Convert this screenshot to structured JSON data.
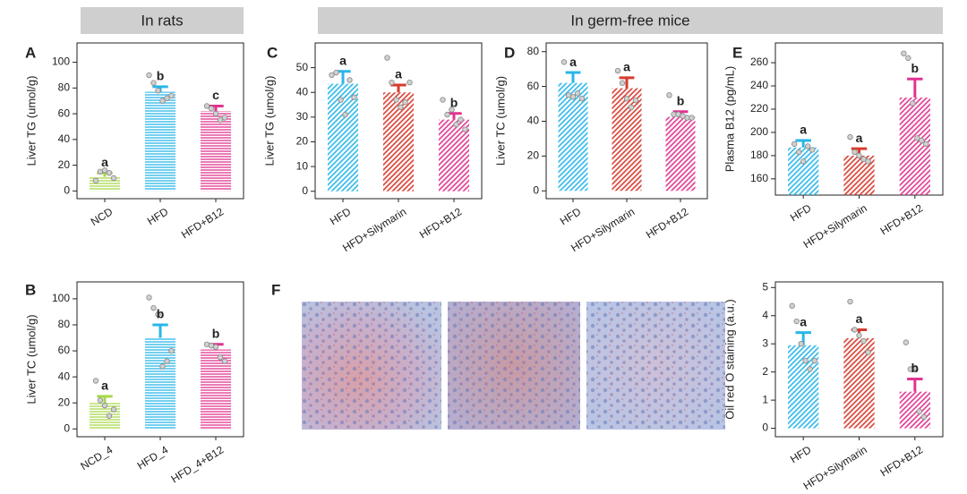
{
  "headers": [
    "In rats",
    "In germ-free mice"
  ],
  "chart_data": [
    {
      "type": "bar",
      "panel": "A",
      "ylabel": "Liver TG (umol/g)",
      "categories": [
        "NCD",
        "HFD",
        "HFD+B12"
      ],
      "values": [
        11,
        77,
        62
      ],
      "errors": [
        3,
        4,
        4
      ],
      "colors": [
        "#a6d84a",
        "#29b6e8",
        "#e0338f"
      ],
      "points": [
        [
          8,
          15,
          16,
          14,
          10
        ],
        [
          90,
          84,
          78,
          70,
          72,
          74
        ],
        [
          66,
          64,
          60,
          55,
          57
        ]
      ],
      "annotations": [
        "a",
        "b",
        "c"
      ],
      "ylim": [
        -6,
        115
      ],
      "yticks": [
        0,
        20,
        40,
        60,
        80,
        100
      ],
      "pattern": "horizontal"
    },
    {
      "type": "bar",
      "panel": "B",
      "ylabel": "Liver TC (umol/g)",
      "categories": [
        "NCD_4",
        "HFD_4",
        "HFD_4+B12"
      ],
      "values": [
        20,
        70,
        61
      ],
      "errors": [
        5,
        10,
        4
      ],
      "colors": [
        "#a6d84a",
        "#29b6e8",
        "#e0338f"
      ],
      "points": [
        [
          37,
          22,
          18,
          10,
          15
        ],
        [
          101,
          93,
          88,
          48,
          52,
          60
        ],
        [
          65,
          64,
          63,
          55,
          52
        ]
      ],
      "annotations": [
        "a",
        "b",
        "b"
      ],
      "ylim": [
        -6,
        113
      ],
      "yticks": [
        0,
        20,
        40,
        60,
        80,
        100
      ],
      "pattern": "horizontal"
    },
    {
      "type": "bar",
      "panel": "C",
      "ylabel": "Liver TG (umol/g)",
      "categories": [
        "HFD",
        "HFD+Silymarin",
        "HFD+B12"
      ],
      "values": [
        43.5,
        40,
        29
      ],
      "errors": [
        5,
        3,
        2.5
      ],
      "colors": [
        "#29b6e8",
        "#d63a2e",
        "#e0338f"
      ],
      "points": [
        [
          47,
          48,
          37,
          31,
          45,
          38
        ],
        [
          54,
          44,
          37,
          34,
          36,
          44
        ],
        [
          37,
          31,
          33,
          27,
          29,
          25
        ]
      ],
      "annotations": [
        "a",
        "a",
        "b"
      ],
      "ylim": [
        -3,
        60
      ],
      "yticks": [
        0,
        10,
        20,
        30,
        40,
        50
      ],
      "pattern": "diagonal"
    },
    {
      "type": "bar",
      "panel": "D",
      "ylabel": "Liver TC (umol/g)",
      "categories": [
        "HFD",
        "HFD+Silymarin",
        "HFD+B12"
      ],
      "values": [
        62,
        59,
        42.5
      ],
      "errors": [
        6,
        6,
        3
      ],
      "colors": [
        "#29b6e8",
        "#d63a2e",
        "#e0338f"
      ],
      "points": [
        [
          74,
          55,
          54,
          56,
          53
        ],
        [
          69,
          62,
          53,
          48,
          52
        ],
        [
          55,
          44,
          44,
          43,
          42,
          42
        ]
      ],
      "annotations": [
        "a",
        "a",
        "b"
      ],
      "ylim": [
        -4.5,
        85
      ],
      "yticks": [
        0,
        20,
        40,
        60,
        80
      ],
      "pattern": "diagonal"
    },
    {
      "type": "bar",
      "panel": "E",
      "ylabel": "Plasma B12 (pg/mL)",
      "categories": [
        "HFD",
        "HFD+Silymarin",
        "HFD+B12"
      ],
      "values": [
        187,
        180,
        230
      ],
      "errors": [
        6,
        6,
        16
      ],
      "colors": [
        "#29b6e8",
        "#d63a2e",
        "#e0338f"
      ],
      "points": [
        [
          190,
          183,
          175,
          188,
          185
        ],
        [
          196,
          183,
          180,
          177,
          175
        ],
        [
          268,
          264,
          225,
          195,
          193,
          190
        ]
      ],
      "annotations": [
        "a",
        "a",
        "b"
      ],
      "ylim": [
        146,
        277
      ],
      "yticks": [
        160,
        180,
        200,
        220,
        240,
        260
      ],
      "pattern": "diagonal"
    },
    {
      "type": "bar",
      "panel": "F",
      "ylabel": "Oil red O staining (a.u.)",
      "categories": [
        "HFD",
        "HFD+Silymarin",
        "HFD+B12"
      ],
      "values": [
        2.95,
        3.2,
        1.3
      ],
      "errors": [
        0.45,
        0.3,
        0.45
      ],
      "colors": [
        "#29b6e8",
        "#d63a2e",
        "#e0338f"
      ],
      "points": [
        [
          4.35,
          3.8,
          3.0,
          2.4,
          2.1,
          2.4
        ],
        [
          4.5,
          3.5,
          3.3,
          3.1,
          2.7
        ],
        [
          3.05,
          2.1,
          2.15,
          0.6,
          0.4
        ]
      ],
      "annotations": [
        "a",
        "a",
        "b"
      ],
      "ylim": [
        -0.3,
        5.2
      ],
      "yticks": [
        0,
        1,
        2,
        3,
        4,
        5
      ],
      "pattern": "diagonal"
    }
  ]
}
